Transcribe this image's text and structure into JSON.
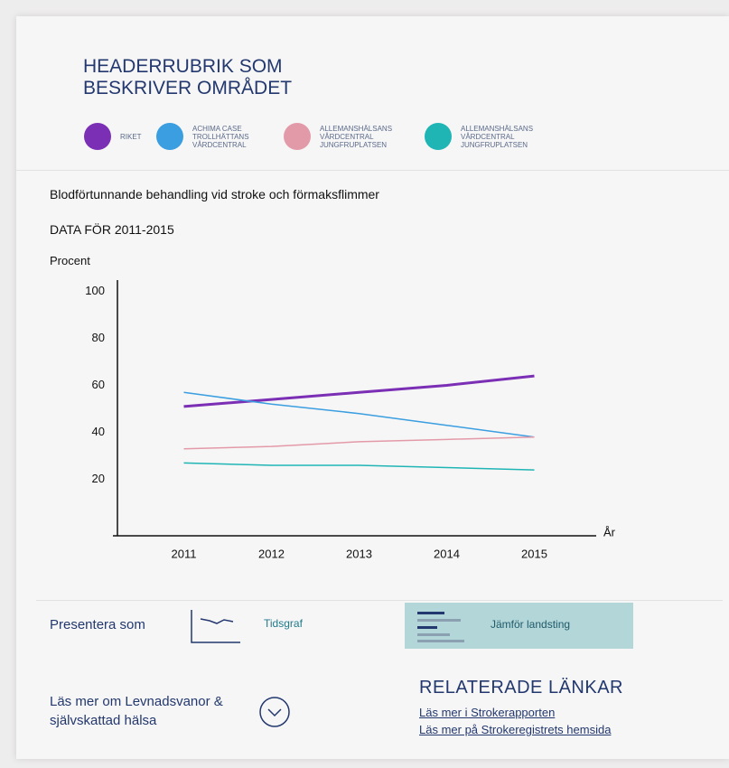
{
  "header": {
    "title_lines": [
      "HEADERRUBRIK SOM",
      "BESKRIVER OMRÅDET"
    ]
  },
  "chart_data": {
    "type": "line",
    "title": "Blodförtunnande behandling vid stroke och förmaksflimmer",
    "subtitle": "DATA FÖR 2011-2015",
    "y_label": "Procent",
    "x_label": "År",
    "categories": [
      "2011",
      "2012",
      "2013",
      "2014",
      "2015"
    ],
    "series": [
      {
        "name": "RIKET",
        "color": "#7b2fb5",
        "values": [
          51,
          54,
          57,
          60,
          64
        ]
      },
      {
        "name": "ACHIMA CASE TROLLHÄTTANS VÅRDCENTRAL",
        "color": "#3a9ee0",
        "values": [
          57,
          52,
          48,
          43,
          38
        ]
      },
      {
        "name": "ALLEMANSHÄLSANS VÅRDCENTRAL JUNGFRUPLATSEN",
        "color": "#e39aa8",
        "values": [
          33,
          34,
          36,
          37,
          38
        ]
      },
      {
        "name": "ALLEMANSHÄLSANS VÅRDCENTRAL JUNGFRUPLATSEN",
        "color": "#1fb5b5",
        "values": [
          27,
          26,
          26,
          25,
          24
        ]
      }
    ],
    "ylim": [
      -4,
      104
    ],
    "yticks": [
      20,
      40,
      60,
      80,
      100
    ],
    "grid": false
  },
  "present": {
    "label": "Presentera som",
    "options": [
      "Tidsgraf",
      "Jämför landsting"
    ]
  },
  "more": {
    "text": "Läs mer om Levnadsvanor & självskattad hälsa"
  },
  "related": {
    "title": "RELATERADE LÄNKAR",
    "links": [
      "Läs mer i Strokerapporten",
      "Läs mer på Strokeregistrets hemsida"
    ]
  }
}
